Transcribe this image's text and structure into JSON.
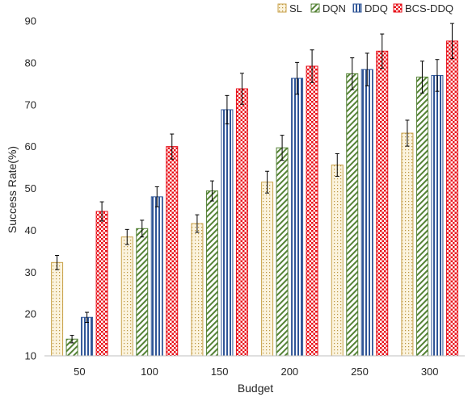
{
  "chart_data": {
    "type": "bar",
    "title": "",
    "xlabel": "Budget",
    "ylabel": "Success Rate(%)",
    "ylim": [
      10,
      90
    ],
    "yticks": [
      10,
      20,
      30,
      40,
      50,
      60,
      70,
      80,
      90
    ],
    "categories": [
      "50",
      "100",
      "150",
      "200",
      "250",
      "300"
    ],
    "grid": false,
    "legend_position": "top-right",
    "error_bars": true,
    "series": [
      {
        "name": "SL",
        "color": "#c9a24a",
        "pattern": "dots",
        "values": [
          32.3,
          38.4,
          41.6,
          51.5,
          55.6,
          63.2
        ],
        "errors": [
          1.7,
          1.8,
          2.1,
          2.6,
          2.7,
          3.1
        ]
      },
      {
        "name": "DQN",
        "color": "#548235",
        "pattern": "diagonal",
        "values": [
          14.0,
          40.4,
          49.4,
          59.7,
          77.4,
          76.6
        ],
        "errors": [
          0.9,
          2.0,
          2.4,
          3.0,
          3.8,
          3.8
        ]
      },
      {
        "name": "DDQ",
        "color": "#2f5597",
        "pattern": "vertical",
        "values": [
          19.2,
          48.0,
          68.8,
          76.3,
          78.4,
          77.0
        ],
        "errors": [
          1.2,
          2.4,
          3.4,
          3.8,
          3.9,
          3.8
        ]
      },
      {
        "name": "BCS-DDQ",
        "color": "#e8101a",
        "pattern": "checker",
        "values": [
          44.5,
          60.0,
          73.8,
          79.2,
          82.8,
          85.2
        ],
        "errors": [
          2.3,
          3.0,
          3.7,
          3.9,
          4.1,
          4.2
        ]
      }
    ]
  }
}
